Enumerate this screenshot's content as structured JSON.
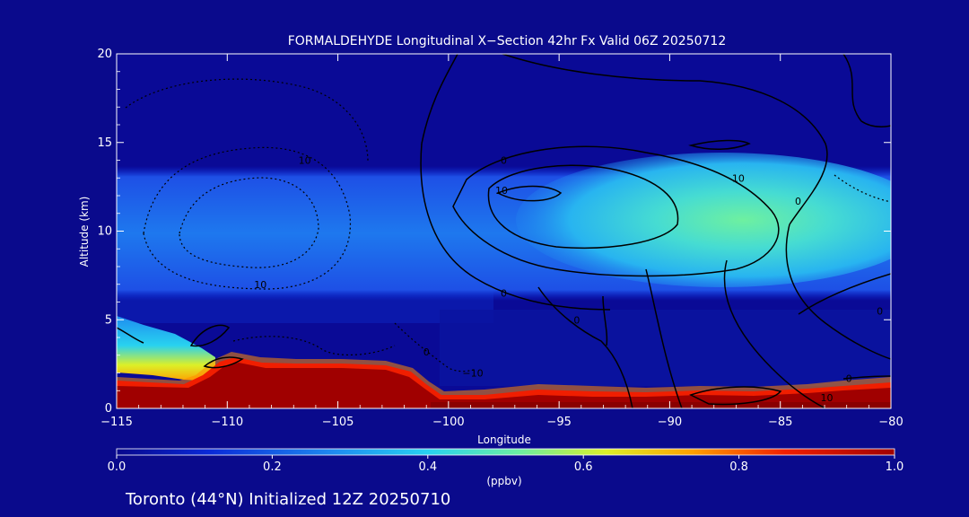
{
  "chart_data": {
    "type": "heatmap",
    "title": "FORMALDEHYDE Longitudinal X−Section 42hr  Fx Valid 06Z 20250712",
    "xlabel": "Longitude",
    "ylabel": "Altitude (km)",
    "xlim": [
      -115,
      -80
    ],
    "ylim": [
      0,
      20
    ],
    "x_ticks": [
      "−115",
      "−110",
      "−105",
      "−100",
      "−95",
      "−90",
      "−85",
      "−80"
    ],
    "y_ticks": [
      "0",
      "5",
      "10",
      "15",
      "20"
    ],
    "grid": false,
    "colorbar": {
      "range": [
        0.0,
        1.0
      ],
      "ticks": [
        "0.0",
        "0.2",
        "0.4",
        "0.6",
        "0.8",
        "1.0"
      ],
      "units": "(ppbv)",
      "colors": [
        "#08088c",
        "#0a2ad8",
        "#1e8cf0",
        "#28d2f0",
        "#6ef0a0",
        "#dcf028",
        "#ffa000",
        "#f01e00",
        "#a00000"
      ]
    },
    "fields": {
      "upper_band_ppbv": 0.3,
      "upper_band_core_ppbv": 0.5,
      "upper_band_altitude_km": [
        6.5,
        13.5
      ],
      "core_longitude": [
        -95,
        -82
      ],
      "boundary_layer_ppbv": 1.0,
      "boundary_layer_top_km": 2.0,
      "western_low_level_ppbv": 0.6
    },
    "contour_labels": [
      {
        "text": "10",
        "lon": -106.5,
        "alt": 14.0
      },
      {
        "text": "10",
        "lon": -108.5,
        "alt": 7.0
      },
      {
        "text": "−10",
        "lon": -98.9,
        "alt": 2.0
      },
      {
        "text": "0",
        "lon": -101.0,
        "alt": 3.2
      },
      {
        "text": "0",
        "lon": -97.5,
        "alt": 14.0
      },
      {
        "text": "10",
        "lon": -86.9,
        "alt": 13.0
      },
      {
        "text": "10",
        "lon": -97.6,
        "alt": 12.3
      },
      {
        "text": "0",
        "lon": -97.5,
        "alt": 6.5
      },
      {
        "text": "0",
        "lon": -84.2,
        "alt": 11.7
      },
      {
        "text": "0",
        "lon": -81.9,
        "alt": 1.7
      },
      {
        "text": "10",
        "lon": -82.9,
        "alt": 0.6
      },
      {
        "text": "0",
        "lon": -80.5,
        "alt": 5.5
      },
      {
        "text": "0",
        "lon": -94.2,
        "alt": 5.0
      }
    ]
  },
  "footer": {
    "location_text": "Toronto (44°N) Initialized 12Z 20250710"
  }
}
